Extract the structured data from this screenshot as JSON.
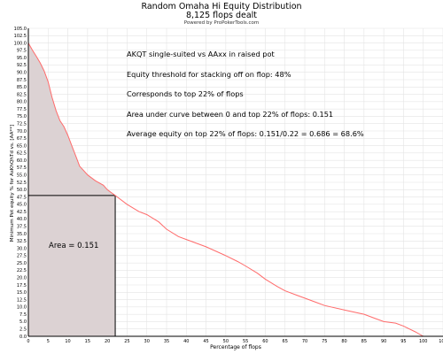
{
  "header": {
    "title": "Random Omaha Hi Equity Distribution",
    "subtitle": "8,125 flops dealt",
    "credit": "Powered by ProPokerTools.com"
  },
  "annotations": [
    "AKQT single-suited vs AAxx in raised pot",
    "Equity threshold for stacking off on flop: 48%",
    "Corresponds to top 22% of flops",
    "Area under curve between 0 and top 22% of flops: 0.151",
    "Average equity on top 22% of flops: 0.151/0.22 = 0.686 = 68.6%"
  ],
  "area_label": "Area = 0.151",
  "colors": {
    "curve": "#ff6b6b",
    "fill": "#dcd2d3",
    "grid": "#e4e4e4",
    "marker": "#000000"
  },
  "chart_data": {
    "type": "area",
    "title": "Random Omaha Hi Equity Distribution",
    "subtitle": "8,125 flops dealt",
    "xlabel": "Percentage of flops",
    "ylabel": "Minimum Pot equity % for AsKhQhTd vs. [AA**]",
    "xlim": [
      0,
      105
    ],
    "ylim": [
      0,
      105
    ],
    "xticks": [
      0,
      5,
      10,
      15,
      20,
      25,
      30,
      35,
      40,
      45,
      50,
      55,
      60,
      65,
      70,
      75,
      80,
      85,
      90,
      95,
      100,
      105
    ],
    "yticks": [
      0,
      2.5,
      5,
      7.5,
      10,
      12.5,
      15,
      17.5,
      20,
      22.5,
      25,
      27.5,
      30,
      32.5,
      35,
      37.5,
      40,
      42.5,
      45,
      47.5,
      50,
      52.5,
      55,
      57.5,
      60,
      62.5,
      65,
      67.5,
      70,
      72.5,
      75,
      77.5,
      80,
      82.5,
      85,
      87.5,
      90,
      92.5,
      95,
      97.5,
      100,
      102.5,
      105
    ],
    "ytick_labels": [
      "0.0",
      "2.5",
      "5.0",
      "7.5",
      "10.0",
      "12.5",
      "15.0",
      "17.5",
      "20.0",
      "22.5",
      "25.0",
      "27.5",
      "30.0",
      "32.5",
      "35.0",
      "37.5",
      "40.0",
      "42.5",
      "45.0",
      "47.5",
      "50.0",
      "52.5",
      "55.0",
      "57.5",
      "60.0",
      "62.5",
      "65.0",
      "67.5",
      "70.0",
      "72.5",
      "75.0",
      "77.5",
      "80.0",
      "82.5",
      "85.0",
      "87.5",
      "90.0",
      "92.5",
      "95.0",
      "97.5",
      "100.0",
      "102.5",
      "105.0"
    ],
    "grid": true,
    "series": [
      {
        "x": [
          0,
          1,
          2,
          3,
          4,
          5,
          6,
          7,
          8,
          9,
          10,
          11,
          12,
          13,
          14,
          15,
          17,
          19,
          20,
          21,
          22,
          25,
          28,
          30,
          33,
          35,
          38,
          40,
          45,
          50,
          53,
          55,
          58,
          60,
          63,
          65,
          68,
          70,
          73,
          75,
          80,
          85,
          88,
          90,
          93,
          95,
          98,
          100
        ],
        "y": [
          100,
          97.6,
          95.5,
          93.2,
          90.5,
          86.8,
          81.5,
          77,
          73.5,
          71.5,
          68.5,
          65,
          61.5,
          58,
          56.5,
          55,
          53,
          51.5,
          50,
          49,
          48,
          45,
          42.5,
          41.5,
          39,
          36.5,
          34,
          33,
          30.5,
          27.5,
          25.5,
          24,
          21.5,
          19.5,
          17,
          15.5,
          14,
          13,
          11.5,
          10.5,
          9,
          7.5,
          6,
          5,
          4.5,
          3.5,
          1.5,
          0
        ]
      }
    ],
    "threshold": {
      "x": 22,
      "y": 48
    },
    "area_under_curve": 0.151
  }
}
